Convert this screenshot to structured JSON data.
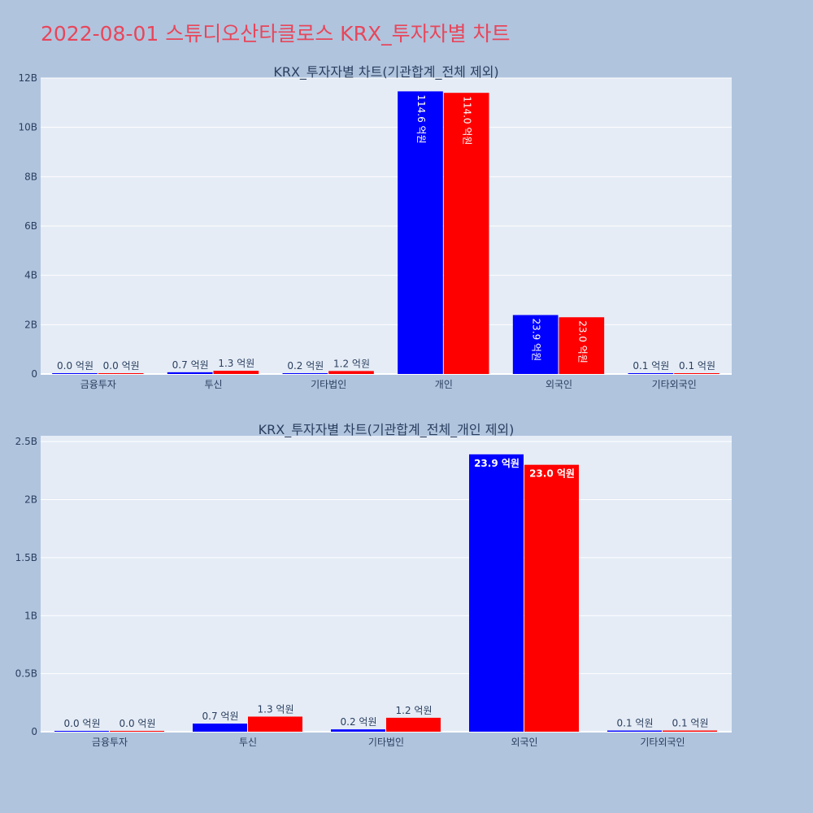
{
  "title": "2022-08-01 스튜디오산타클로스 KRX_투자자별 차트",
  "chart_data": [
    {
      "type": "bar",
      "title": "KRX_투자자별 차트(기관합계_전체 제외)",
      "categories": [
        "금융투자",
        "투신",
        "기타법인",
        "개인",
        "외국인",
        "기타외국인"
      ],
      "ylim": [
        0,
        12000000000
      ],
      "yticks": [
        0,
        2000000000,
        4000000000,
        6000000000,
        8000000000,
        10000000000,
        12000000000
      ],
      "ytick_labels": [
        "0",
        "2B",
        "4B",
        "6B",
        "8B",
        "10B",
        "12B"
      ],
      "grid": true,
      "series": [
        {
          "color": "#0000ff",
          "values": [
            1000000,
            70000000,
            20000000,
            11460000000,
            2390000000,
            10000000
          ],
          "labels": [
            "0.0 억원",
            "0.7 억원",
            "0.2 억원",
            "114.6 억원",
            "23.9 억원",
            "0.1 억원"
          ]
        },
        {
          "color": "#ff0000",
          "values": [
            1000000,
            130000000,
            120000000,
            11400000000,
            2300000000,
            10000000
          ],
          "labels": [
            "0.0 억원",
            "1.3 억원",
            "1.2 억원",
            "114.0 억원",
            "23.0 억원",
            "0.1 억원"
          ]
        }
      ]
    },
    {
      "type": "bar",
      "title": "KRX_투자자별 차트(기관합계_전체_개인 제외)",
      "categories": [
        "금융투자",
        "투신",
        "기타법인",
        "외국인",
        "기타외국인"
      ],
      "ylim": [
        0,
        2550000000
      ],
      "yticks": [
        0,
        500000000,
        1000000000,
        1500000000,
        2000000000,
        2500000000
      ],
      "ytick_labels": [
        "0",
        "0.5B",
        "1B",
        "1.5B",
        "2B",
        "2.5B"
      ],
      "grid": true,
      "series": [
        {
          "color": "#0000ff",
          "values": [
            1000000,
            70000000,
            20000000,
            2390000000,
            10000000
          ],
          "labels": [
            "0.0 억원",
            "0.7 억원",
            "0.2 억원",
            "23.9 억원",
            "0.1 억원"
          ]
        },
        {
          "color": "#ff0000",
          "values": [
            1000000,
            130000000,
            120000000,
            2300000000,
            10000000
          ],
          "labels": [
            "0.0 억원",
            "1.3 억원",
            "1.2 억원",
            "23.0 억원",
            "0.1 억원"
          ]
        }
      ]
    }
  ]
}
